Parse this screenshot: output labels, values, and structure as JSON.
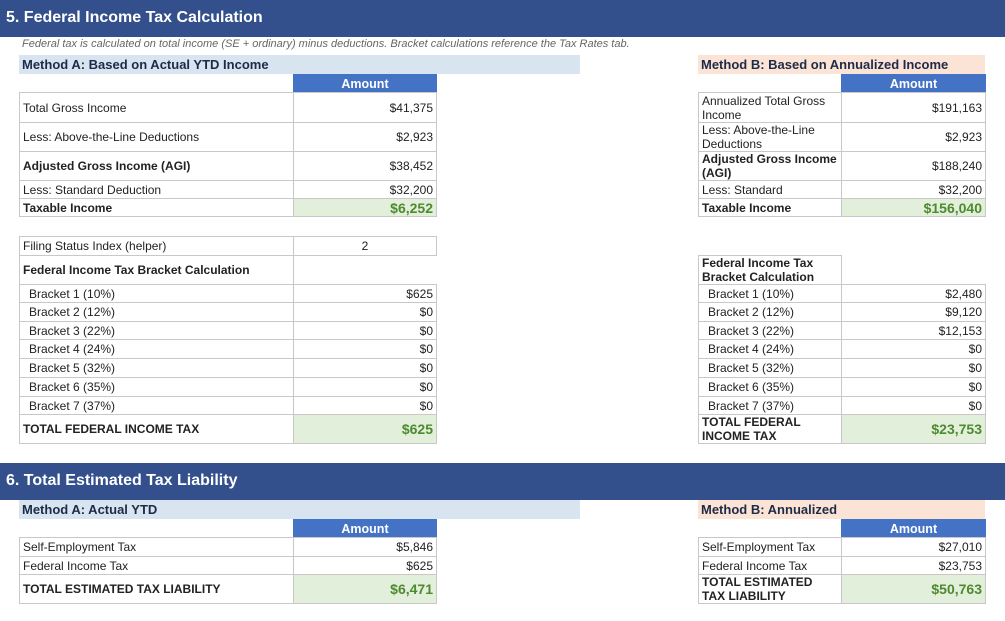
{
  "section5": {
    "title": "5. Federal Income Tax Calculation",
    "subtitle": "Federal tax is calculated on total income (SE + ordinary) minus deductions. Bracket calculations reference the Tax Rates tab.",
    "method_a": {
      "title": "Method A: Based on Actual YTD Income",
      "amount_header": "Amount",
      "rows": [
        {
          "label": "Total Gross Income",
          "value": "$41,375"
        },
        {
          "label": "Less: Above-the-Line Deductions",
          "value": "$2,923"
        },
        {
          "label": "Adjusted Gross Income (AGI)",
          "value": "$38,452"
        },
        {
          "label": "Less: Standard Deduction",
          "value": "$32,200"
        },
        {
          "label": "Taxable Income",
          "value": "$6,252"
        }
      ],
      "helper_label": "Filing Status Index (helper)",
      "helper_value": "2",
      "bracket_header": "Federal Income Tax Bracket Calculation",
      "brackets": [
        {
          "label": "Bracket 1 (10%)",
          "value": "$625"
        },
        {
          "label": "Bracket 2 (12%)",
          "value": "$0"
        },
        {
          "label": "Bracket 3 (22%)",
          "value": "$0"
        },
        {
          "label": "Bracket 4 (24%)",
          "value": "$0"
        },
        {
          "label": "Bracket 5 (32%)",
          "value": "$0"
        },
        {
          "label": "Bracket 6 (35%)",
          "value": "$0"
        },
        {
          "label": "Bracket 7 (37%)",
          "value": "$0"
        }
      ],
      "total_label": "TOTAL FEDERAL INCOME TAX",
      "total_value": "$625"
    },
    "method_b": {
      "title": "Method B: Based on Annualized Income",
      "amount_header": "Amount",
      "rows": [
        {
          "label": "Annualized Total Gross Income",
          "value": "$191,163"
        },
        {
          "label": "Less: Above-the-Line Deductions",
          "value": "$2,923"
        },
        {
          "label": "Adjusted Gross Income (AGI)",
          "value": "$188,240"
        },
        {
          "label": "Less: Standard",
          "value": "$32,200"
        },
        {
          "label": "Taxable Income",
          "value": "$156,040"
        }
      ],
      "bracket_header": "Federal Income Tax Bracket Calculation",
      "brackets": [
        {
          "label": "Bracket 1 (10%)",
          "value": "$2,480"
        },
        {
          "label": "Bracket 2 (12%)",
          "value": "$9,120"
        },
        {
          "label": "Bracket 3 (22%)",
          "value": "$12,153"
        },
        {
          "label": "Bracket 4 (24%)",
          "value": "$0"
        },
        {
          "label": "Bracket 5 (32%)",
          "value": "$0"
        },
        {
          "label": "Bracket 6 (35%)",
          "value": "$0"
        },
        {
          "label": "Bracket 7 (37%)",
          "value": "$0"
        }
      ],
      "total_label": "TOTAL FEDERAL INCOME TAX",
      "total_value": "$23,753"
    }
  },
  "section6": {
    "title": "6. Total Estimated Tax Liability",
    "method_a": {
      "title": "Method A: Actual YTD",
      "amount_header": "Amount",
      "rows": [
        {
          "label": "Self-Employment Tax",
          "value": "$5,846"
        },
        {
          "label": "Federal Income Tax",
          "value": "$625"
        }
      ],
      "total_label": "TOTAL ESTIMATED TAX LIABILITY",
      "total_value": "$6,471"
    },
    "method_b": {
      "title": "Method B: Annualized",
      "amount_header": "Amount",
      "rows": [
        {
          "label": "Self-Employment Tax",
          "value": "$27,010"
        },
        {
          "label": "Federal Income Tax",
          "value": "$23,753"
        }
      ],
      "total_label": "TOTAL ESTIMATED TAX LIABILITY",
      "total_value": "$50,763"
    }
  }
}
